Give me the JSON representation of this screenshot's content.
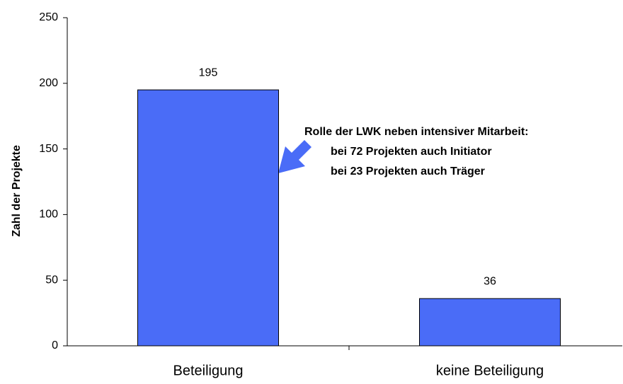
{
  "chart_data": {
    "type": "bar",
    "categories": [
      "Beteiligung",
      "keine Beteiligung"
    ],
    "values": [
      195,
      36
    ],
    "color": "#4a6cf7",
    "ylabel": "Zahl der Projekte",
    "ylim": [
      0,
      250
    ],
    "yticks": [
      0,
      50,
      100,
      150,
      200,
      250
    ],
    "grid": false,
    "annotation": [
      "Rolle der LWK neben intensiver Mitarbeit:",
      "bei 72 Projekten auch Initiator",
      "bei 23 Projekten auch Träger"
    ]
  }
}
